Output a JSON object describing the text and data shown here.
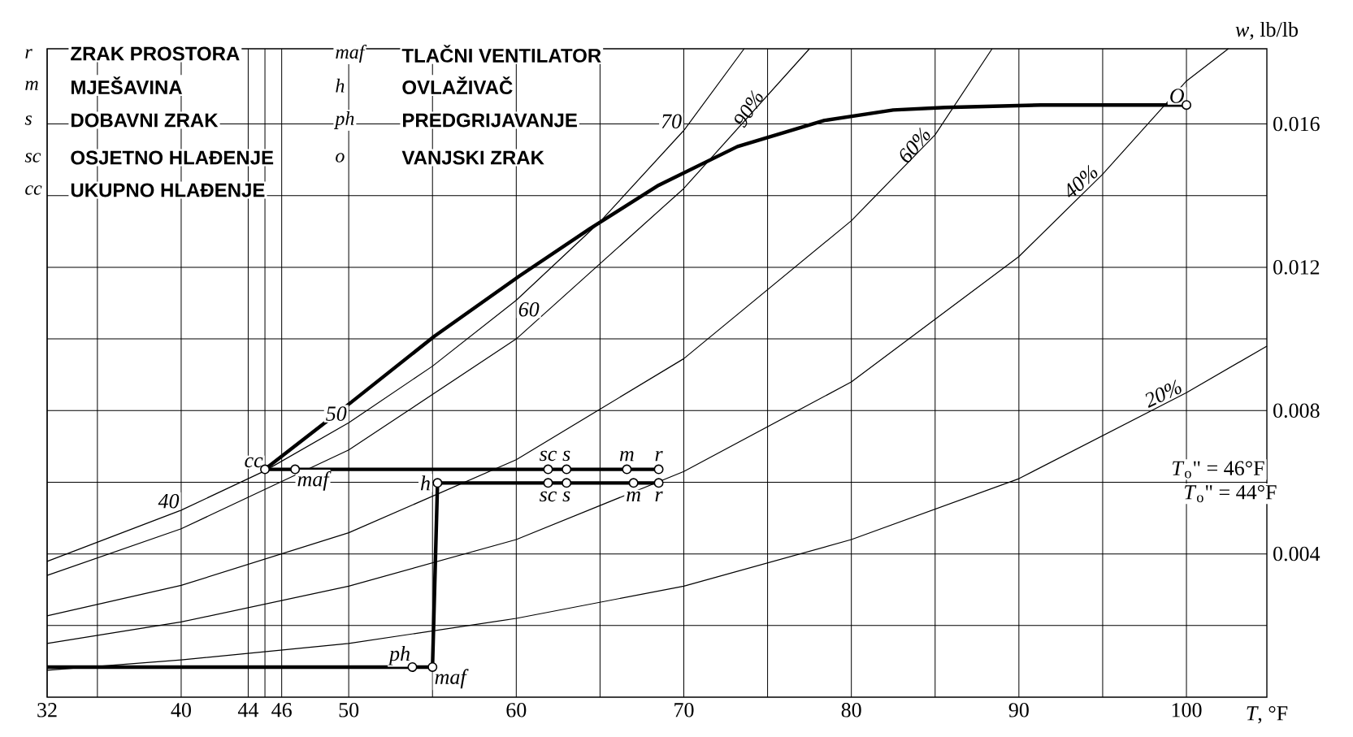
{
  "chart_data": {
    "type": "line",
    "xlabel": "*T*, °F",
    "ylabel": "*w*, lb/lb",
    "xlim": [
      32,
      104.8
    ],
    "ylim": [
      0,
      0.0181
    ],
    "xticks": [
      32,
      {
        "value": 35,
        "label": null
      },
      40,
      44,
      {
        "value": 45,
        "label": null
      },
      46,
      50,
      {
        "value": 55,
        "label": null
      },
      60,
      {
        "value": 65,
        "label": null
      },
      70,
      {
        "value": 75,
        "label": null
      },
      80,
      {
        "value": 85,
        "label": null
      },
      90,
      {
        "value": 95,
        "label": null
      },
      100
    ],
    "yticks": [
      {
        "value": 0.002,
        "label": null
      },
      {
        "value": 0.004,
        "label": "0.004"
      },
      {
        "value": 0.006,
        "label": null
      },
      {
        "value": 0.008,
        "label": "0.008"
      },
      {
        "value": 0.01,
        "label": null
      },
      {
        "value": 0.012,
        "label": "0.012"
      },
      {
        "value": 0.014,
        "label": null
      },
      {
        "value": 0.016,
        "label": "0.016"
      }
    ],
    "grid": true,
    "series": [
      {
        "color": "#000000",
        "x": [
          32,
          40,
          45,
          50,
          55,
          60,
          65,
          70,
          73.6
        ],
        "values": [
          0.00379,
          0.00522,
          0.00632,
          0.00766,
          0.00924,
          0.01108,
          0.01327,
          0.01582,
          0.0181
        ]
      },
      {
        "color": "#000000",
        "x": [
          32,
          40,
          50,
          60,
          70,
          75,
          77.5
        ],
        "values": [
          0.0034,
          0.0047,
          0.0069,
          0.01,
          0.0142,
          0.0168,
          0.0181
        ]
      },
      {
        "color": "#000000",
        "x": [
          32,
          40,
          50,
          60,
          70,
          80,
          85,
          88.4
        ],
        "values": [
          0.00227,
          0.00312,
          0.00459,
          0.00663,
          0.00945,
          0.0133,
          0.0157,
          0.0181
        ]
      },
      {
        "color": "#000000",
        "x": [
          32,
          40,
          50,
          60,
          70,
          80,
          90,
          95,
          100,
          102.5
        ],
        "values": [
          0.0015,
          0.0021,
          0.0031,
          0.0044,
          0.0063,
          0.0088,
          0.0123,
          0.0146,
          0.0172,
          0.0181
        ]
      },
      {
        "color": "#000000",
        "x": [
          32,
          40,
          50,
          60,
          70,
          80,
          90,
          100,
          104.8
        ],
        "values": [
          0.00075,
          0.00104,
          0.0015,
          0.0022,
          0.0031,
          0.0044,
          0.0061,
          0.0085,
          0.0098
        ]
      },
      {
        "color": "#000000",
        "marker": "none",
        "x": [
          45.0,
          49.9,
          55.1,
          60.2,
          64.4,
          68.5,
          73.2,
          78.4,
          82.5,
          85.6,
          91.3,
          100
        ],
        "values": [
          0.00636,
          0.00814,
          0.01007,
          0.01176,
          0.01308,
          0.01429,
          0.01537,
          0.0161,
          0.01639,
          0.01646,
          0.01653,
          0.01653
        ]
      },
      {
        "color": "#000000",
        "marker": "circle",
        "x": [
          45.0,
          46.8,
          61.9,
          63.0,
          66.6,
          68.5
        ],
        "values": [
          0.00636,
          0.00636,
          0.00636,
          0.00636,
          0.00636,
          0.00636
        ]
      },
      {
        "color": "#000000",
        "marker": "none",
        "x": [
          32,
          53.8,
          55.0,
          55.3,
          61.9,
          63.0,
          67.0,
          68.5
        ],
        "values": [
          0.00084,
          0.00084,
          0.00084,
          0.00598,
          0.00598,
          0.00598,
          0.00598,
          0.00598
        ]
      },
      {
        "color": "#000000",
        "type": "scatter",
        "marker": "circle",
        "x": [
          53.8,
          55.0,
          55.3,
          61.9,
          63.0,
          67.0,
          68.5
        ],
        "values": [
          0.00084,
          0.00084,
          0.00598,
          0.00598,
          0.00598,
          0.00598,
          0.00598
        ]
      },
      {
        "color": "#000000",
        "type": "scatter",
        "marker": "circle",
        "x": [
          100
        ],
        "values": [
          0.01653
        ]
      }
    ],
    "annotations": [
      "r",
      "ZRAK PROSTORA",
      "m",
      "MJEŠAVINA",
      "s",
      "DOBAVNI ZRAK",
      "sc",
      "OSJETNO HLAĐENJE",
      "cc",
      "UKUPNO HLAĐENJE",
      "maf",
      "TLAČNI VENTILATOR",
      "h",
      "OVLAŽIVAČ",
      "ph",
      "PREDGRIJAVANJE",
      "o",
      "VANJSKI ZRAK",
      {
        "text": "cc",
        "x": 45.0,
        "y": 0.00636
      },
      {
        "text": "maf",
        "x": 46.8,
        "y": 0.00636
      },
      {
        "text": "sc",
        "x": 61.9,
        "y": 0.00636
      },
      {
        "text": "s",
        "x": 63.0,
        "y": 0.00636
      },
      {
        "text": "m",
        "x": 66.6,
        "y": 0.00636
      },
      {
        "text": "r",
        "x": 68.5,
        "y": 0.00636
      },
      {
        "text": "h",
        "x": 55.3,
        "y": 0.00598
      },
      {
        "text": "sc",
        "x": 61.9,
        "y": 0.00598
      },
      {
        "text": "s",
        "x": 63.0,
        "y": 0.00598
      },
      {
        "text": "m",
        "x": 67.0,
        "y": 0.00598
      },
      {
        "text": "r",
        "x": 68.5,
        "y": 0.00598
      },
      {
        "text": "ph",
        "x": 53.8,
        "y": 0.00084
      },
      {
        "text": "maf",
        "x": 55.0,
        "y": 0.00084
      },
      {
        "text": "O",
        "x": 100,
        "y": 0.01653
      },
      {
        "text": "40",
        "x": 40,
        "y": 0.00522
      },
      {
        "text": "50",
        "x": 50,
        "y": 0.00766
      },
      {
        "text": "60",
        "x": 60,
        "y": 0.01108
      },
      {
        "text": "70",
        "x": 70,
        "y": 0.01582
      },
      {
        "text": "90%",
        "x": 75,
        "y": 0.0168
      },
      {
        "text": "60%",
        "x": 85,
        "y": 0.0157
      },
      {
        "text": "40%",
        "x": 95,
        "y": 0.0146
      },
      {
        "text": "20%",
        "x": 100,
        "y": 0.0085
      },
      "*T*$_{o}$\" = 46°F",
      "*T*$_{o}$\" = 44°F"
    ]
  }
}
